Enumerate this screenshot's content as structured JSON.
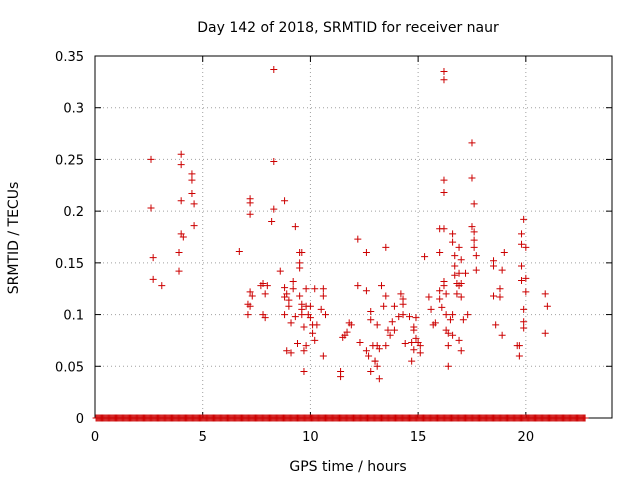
{
  "chart_data": {
    "type": "scatter",
    "title": "Day 142 of 2018, SRMTID for receiver naur",
    "xlabel": "GPS time / hours",
    "ylabel": "SRMTID / TECUs",
    "xlim": [
      0,
      24
    ],
    "ylim": [
      0,
      0.35
    ],
    "grid": true,
    "marker_color": "#cc0000",
    "x_ticks": [
      0,
      5,
      10,
      15,
      20
    ],
    "x_tick_labels": [
      "0",
      "5",
      "10",
      "15",
      "20"
    ],
    "y_ticks": [
      0,
      0.05,
      0.1,
      0.15,
      0.2,
      0.25,
      0.3,
      0.35
    ],
    "y_tick_labels": [
      "0",
      "0.05",
      "0.1",
      "0.15",
      "0.2",
      "0.25",
      "0.3",
      "0.35"
    ],
    "series": [
      {
        "name": "SRMTID",
        "points": [
          [
            2.6,
            0.25
          ],
          [
            2.6,
            0.203
          ],
          [
            2.7,
            0.155
          ],
          [
            2.7,
            0.134
          ],
          [
            3.1,
            0.128
          ],
          [
            3.9,
            0.142
          ],
          [
            3.9,
            0.16
          ],
          [
            4.0,
            0.178
          ],
          [
            4.0,
            0.255
          ],
          [
            4.0,
            0.245
          ],
          [
            4.0,
            0.21
          ],
          [
            4.1,
            0.175
          ],
          [
            4.5,
            0.236
          ],
          [
            4.5,
            0.23
          ],
          [
            4.5,
            0.217
          ],
          [
            4.6,
            0.207
          ],
          [
            4.6,
            0.186
          ],
          [
            6.7,
            0.161
          ],
          [
            7.2,
            0.212
          ],
          [
            7.2,
            0.208
          ],
          [
            7.2,
            0.197
          ],
          [
            7.2,
            0.122
          ],
          [
            7.1,
            0.11
          ],
          [
            7.2,
            0.108
          ],
          [
            7.1,
            0.1
          ],
          [
            7.3,
            0.118
          ],
          [
            7.7,
            0.128
          ],
          [
            7.8,
            0.13
          ],
          [
            7.9,
            0.12
          ],
          [
            7.8,
            0.1
          ],
          [
            7.9,
            0.097
          ],
          [
            8.0,
            0.128
          ],
          [
            8.3,
            0.337
          ],
          [
            8.3,
            0.248
          ],
          [
            8.3,
            0.202
          ],
          [
            8.2,
            0.19
          ],
          [
            8.6,
            0.142
          ],
          [
            8.8,
            0.126
          ],
          [
            8.8,
            0.117
          ],
          [
            8.8,
            0.21
          ],
          [
            8.8,
            0.1
          ],
          [
            8.9,
            0.12
          ],
          [
            8.9,
            0.065
          ],
          [
            9.0,
            0.108
          ],
          [
            9.0,
            0.114
          ],
          [
            9.1,
            0.063
          ],
          [
            9.1,
            0.092
          ],
          [
            9.2,
            0.125
          ],
          [
            9.2,
            0.132
          ],
          [
            9.3,
            0.185
          ],
          [
            9.3,
            0.098
          ],
          [
            9.4,
            0.072
          ],
          [
            9.5,
            0.16
          ],
          [
            9.5,
            0.15
          ],
          [
            9.6,
            0.16
          ],
          [
            9.5,
            0.145
          ],
          [
            9.5,
            0.118
          ],
          [
            9.6,
            0.11
          ],
          [
            9.6,
            0.1
          ],
          [
            9.6,
            0.105
          ],
          [
            9.7,
            0.045
          ],
          [
            9.7,
            0.065
          ],
          [
            9.7,
            0.088
          ],
          [
            9.8,
            0.07
          ],
          [
            9.8,
            0.125
          ],
          [
            9.8,
            0.108
          ],
          [
            9.9,
            0.1
          ],
          [
            10.0,
            0.108
          ],
          [
            10.0,
            0.097
          ],
          [
            10.1,
            0.09
          ],
          [
            10.1,
            0.082
          ],
          [
            10.2,
            0.125
          ],
          [
            10.2,
            0.075
          ],
          [
            10.3,
            0.09
          ],
          [
            10.5,
            0.105
          ],
          [
            10.6,
            0.125
          ],
          [
            10.6,
            0.118
          ],
          [
            10.6,
            0.06
          ],
          [
            10.7,
            0.1
          ],
          [
            11.4,
            0.045
          ],
          [
            11.4,
            0.04
          ],
          [
            11.5,
            0.078
          ],
          [
            11.6,
            0.08
          ],
          [
            11.7,
            0.083
          ],
          [
            11.8,
            0.092
          ],
          [
            11.9,
            0.09
          ],
          [
            12.2,
            0.173
          ],
          [
            12.2,
            0.128
          ],
          [
            12.3,
            0.073
          ],
          [
            12.6,
            0.16
          ],
          [
            12.6,
            0.123
          ],
          [
            12.6,
            0.065
          ],
          [
            12.7,
            0.06
          ],
          [
            12.8,
            0.045
          ],
          [
            12.8,
            0.095
          ],
          [
            12.8,
            0.103
          ],
          [
            12.9,
            0.07
          ],
          [
            13.0,
            0.055
          ],
          [
            13.0,
            0.055
          ],
          [
            13.1,
            0.09
          ],
          [
            13.1,
            0.07
          ],
          [
            13.1,
            0.05
          ],
          [
            13.2,
            0.067
          ],
          [
            13.2,
            0.038
          ],
          [
            13.3,
            0.128
          ],
          [
            13.4,
            0.108
          ],
          [
            13.5,
            0.165
          ],
          [
            13.5,
            0.118
          ],
          [
            13.5,
            0.07
          ],
          [
            13.6,
            0.085
          ],
          [
            13.7,
            0.08
          ],
          [
            13.8,
            0.093
          ],
          [
            13.9,
            0.108
          ],
          [
            13.9,
            0.085
          ],
          [
            14.1,
            0.098
          ],
          [
            14.2,
            0.12
          ],
          [
            14.3,
            0.115
          ],
          [
            14.3,
            0.1
          ],
          [
            14.3,
            0.11
          ],
          [
            14.4,
            0.072
          ],
          [
            14.6,
            0.098
          ],
          [
            14.7,
            0.073
          ],
          [
            14.7,
            0.055
          ],
          [
            14.8,
            0.088
          ],
          [
            14.8,
            0.085
          ],
          [
            14.8,
            0.066
          ],
          [
            14.9,
            0.097
          ],
          [
            14.9,
            0.077
          ],
          [
            15.0,
            0.073
          ],
          [
            15.1,
            0.063
          ],
          [
            15.1,
            0.07
          ],
          [
            15.3,
            0.156
          ],
          [
            15.5,
            0.117
          ],
          [
            15.6,
            0.105
          ],
          [
            15.7,
            0.09
          ],
          [
            15.8,
            0.092
          ],
          [
            16.0,
            0.115
          ],
          [
            16.0,
            0.183
          ],
          [
            16.0,
            0.16
          ],
          [
            16.0,
            0.123
          ],
          [
            16.1,
            0.107
          ],
          [
            16.2,
            0.335
          ],
          [
            16.2,
            0.327
          ],
          [
            16.2,
            0.23
          ],
          [
            16.2,
            0.218
          ],
          [
            16.2,
            0.183
          ],
          [
            16.2,
            0.132
          ],
          [
            16.2,
            0.128
          ],
          [
            16.3,
            0.12
          ],
          [
            16.3,
            0.1
          ],
          [
            16.3,
            0.085
          ],
          [
            16.4,
            0.07
          ],
          [
            16.4,
            0.05
          ],
          [
            16.4,
            0.082
          ],
          [
            16.5,
            0.095
          ],
          [
            16.6,
            0.178
          ],
          [
            16.6,
            0.17
          ],
          [
            16.6,
            0.08
          ],
          [
            16.6,
            0.1
          ],
          [
            16.7,
            0.157
          ],
          [
            16.7,
            0.147
          ],
          [
            16.7,
            0.138
          ],
          [
            16.8,
            0.13
          ],
          [
            16.8,
            0.12
          ],
          [
            16.9,
            0.165
          ],
          [
            16.9,
            0.14
          ],
          [
            16.9,
            0.128
          ],
          [
            16.9,
            0.075
          ],
          [
            17.0,
            0.153
          ],
          [
            17.0,
            0.13
          ],
          [
            17.0,
            0.117
          ],
          [
            17.0,
            0.065
          ],
          [
            17.1,
            0.095
          ],
          [
            17.2,
            0.14
          ],
          [
            17.3,
            0.1
          ],
          [
            17.5,
            0.266
          ],
          [
            17.5,
            0.232
          ],
          [
            17.5,
            0.185
          ],
          [
            17.6,
            0.207
          ],
          [
            17.6,
            0.18
          ],
          [
            17.6,
            0.172
          ],
          [
            17.6,
            0.165
          ],
          [
            17.7,
            0.157
          ],
          [
            17.7,
            0.143
          ],
          [
            18.5,
            0.152
          ],
          [
            18.5,
            0.147
          ],
          [
            18.5,
            0.118
          ],
          [
            18.6,
            0.09
          ],
          [
            18.8,
            0.125
          ],
          [
            18.8,
            0.117
          ],
          [
            18.9,
            0.08
          ],
          [
            18.9,
            0.143
          ],
          [
            19.0,
            0.16
          ],
          [
            19.6,
            0.07
          ],
          [
            19.7,
            0.07
          ],
          [
            19.7,
            0.06
          ],
          [
            19.8,
            0.133
          ],
          [
            19.8,
            0.147
          ],
          [
            19.8,
            0.178
          ],
          [
            19.8,
            0.168
          ],
          [
            19.9,
            0.105
          ],
          [
            19.9,
            0.093
          ],
          [
            19.9,
            0.087
          ],
          [
            19.9,
            0.192
          ],
          [
            20.0,
            0.165
          ],
          [
            20.0,
            0.135
          ],
          [
            20.0,
            0.122
          ],
          [
            20.9,
            0.12
          ],
          [
            20.9,
            0.082
          ],
          [
            21.0,
            0.108
          ]
        ],
        "zero_baseline": {
          "y": 0,
          "x_start": 0.05,
          "x_end": 22.75,
          "step": 0.05
        }
      }
    ]
  }
}
